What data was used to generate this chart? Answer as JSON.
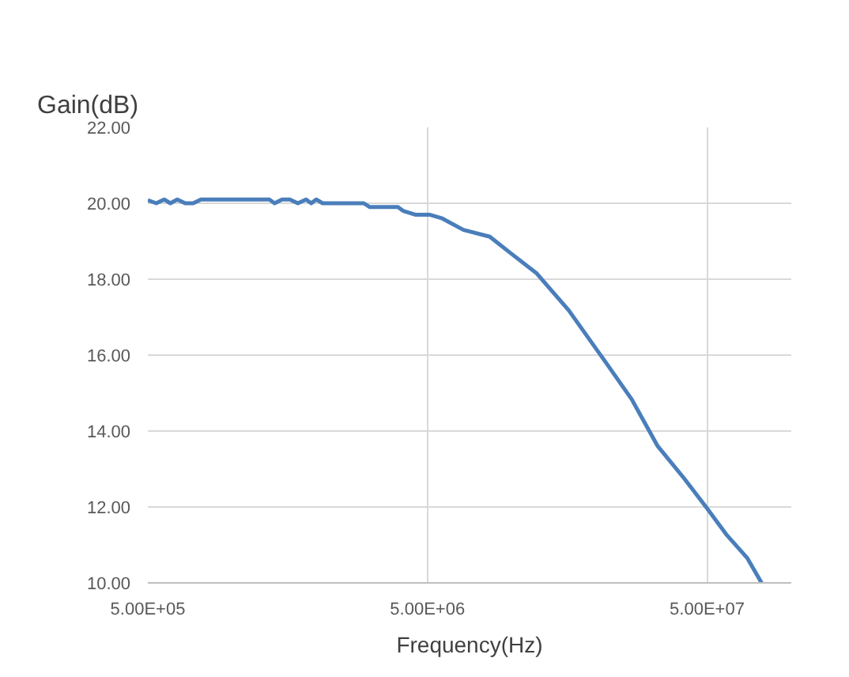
{
  "chart_data": {
    "type": "line",
    "title": "Gain(dB)",
    "xlabel": "Frequency(Hz)",
    "log": "x",
    "grid": true,
    "marker": "none",
    "line_style": "solid",
    "xlim": [
      500000,
      100000000
    ],
    "xticks": [
      {
        "value": 500000,
        "label": "5.00E+05"
      },
      {
        "value": 5000000,
        "label": "5.00E+06"
      },
      {
        "value": 50000000,
        "label": "5.00E+07"
      }
    ],
    "ylim": [
      10,
      22
    ],
    "yticks": [
      {
        "value": 10,
        "label": "10.00"
      },
      {
        "value": 12,
        "label": "12.00"
      },
      {
        "value": 14,
        "label": "14.00"
      },
      {
        "value": 16,
        "label": "16.00"
      },
      {
        "value": 18,
        "label": "18.00"
      },
      {
        "value": 20,
        "label": "20.00"
      },
      {
        "value": 22,
        "label": "22.00"
      }
    ],
    "series": [
      {
        "color": "#4a7ebb",
        "x": [
          500000,
          536000,
          572000,
          602000,
          637000,
          680000,
          726000,
          775000,
          1360000,
          1420000,
          1510000,
          1610000,
          1720000,
          1840000,
          1920000,
          2000000,
          2110000,
          2960000,
          3110000,
          3920000,
          4090000,
          4520000,
          5080000,
          5650000,
          6720000,
          8350000,
          9900000,
          12300000,
          16000000,
          21600000,
          26900000,
          33300000,
          41400000,
          49800000,
          58500000,
          69500000,
          78300000
        ],
        "values": [
          20.08,
          20.0,
          20.1,
          20.0,
          20.1,
          20.0,
          20.0,
          20.1,
          20.1,
          20.0,
          20.1,
          20.1,
          20.0,
          20.1,
          20.0,
          20.1,
          20.0,
          20.0,
          19.9,
          19.9,
          19.8,
          19.7,
          19.7,
          19.6,
          19.3,
          19.12,
          18.69,
          18.15,
          17.18,
          15.83,
          14.83,
          13.6,
          12.75,
          11.98,
          11.28,
          10.66,
          10.0
        ]
      }
    ]
  }
}
